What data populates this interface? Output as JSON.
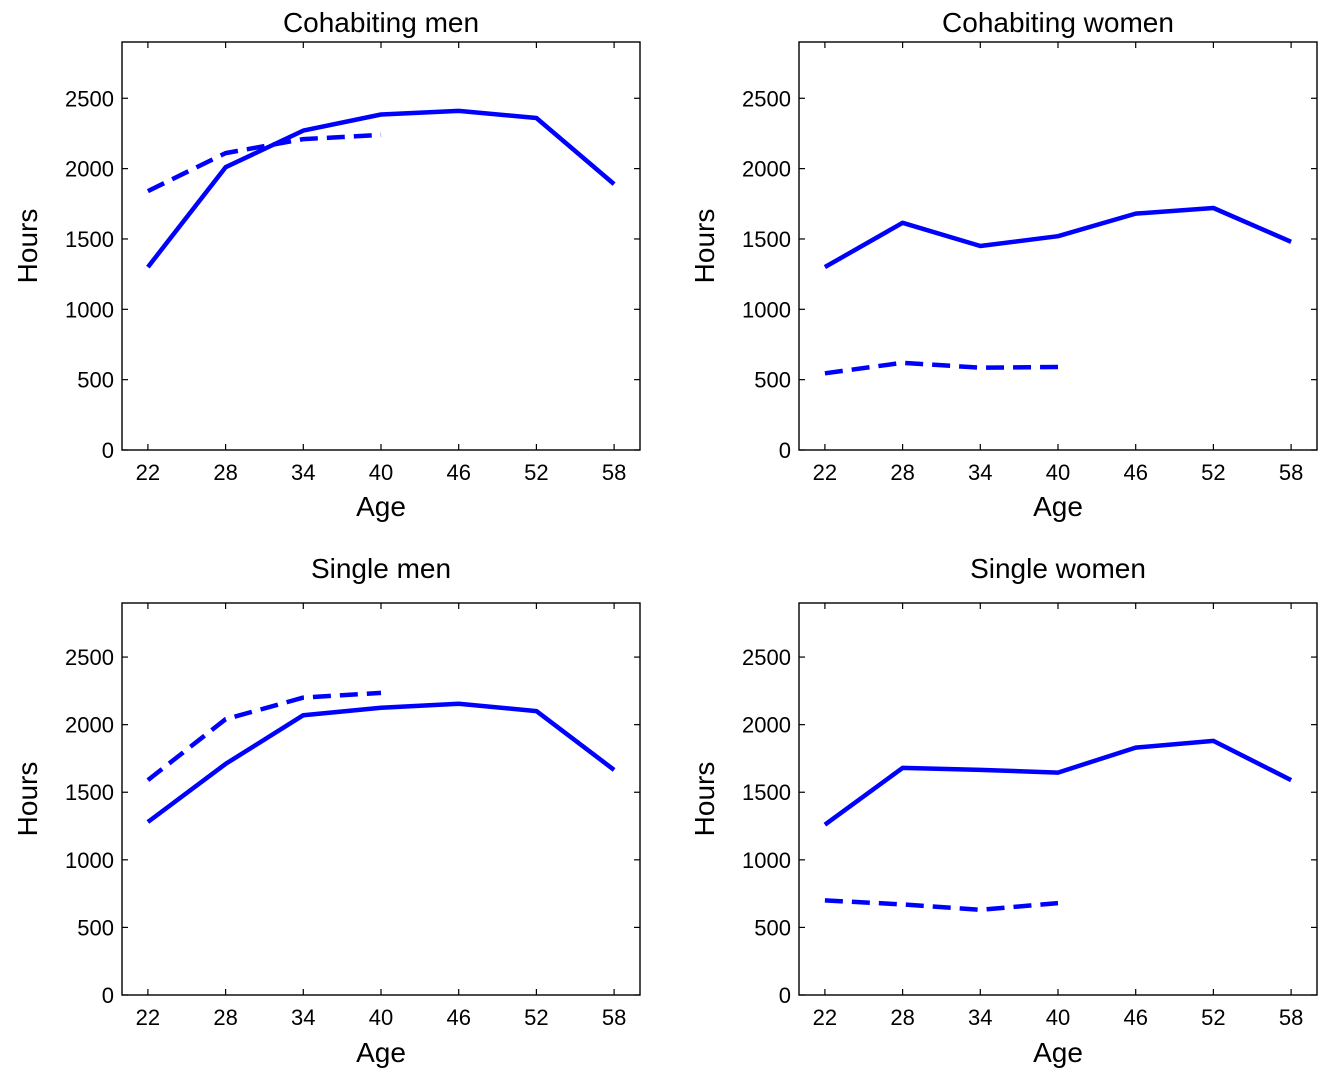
{
  "chart_data": [
    {
      "type": "line",
      "title": "Cohabiting men",
      "xlabel": "Age",
      "ylabel": "Hours",
      "x_ticks": [
        "22",
        "28",
        "34",
        "40",
        "46",
        "52",
        "58"
      ],
      "y_ticks": [
        "0",
        "500",
        "1000",
        "1500",
        "2000",
        "2500"
      ],
      "xlim": [
        20,
        60
      ],
      "ylim": [
        0,
        2900
      ],
      "grid": false,
      "series": [
        {
          "style": "solid",
          "color": "#0000ff",
          "x": [
            22,
            28,
            34,
            40,
            46,
            52,
            58
          ],
          "y": [
            1300,
            2010,
            2270,
            2385,
            2410,
            2360,
            1890
          ]
        },
        {
          "style": "dashed",
          "color": "#0000ff",
          "x": [
            22,
            28,
            34,
            40
          ],
          "y": [
            1840,
            2110,
            2210,
            2240
          ]
        }
      ]
    },
    {
      "type": "line",
      "title": "Cohabiting women",
      "xlabel": "Age",
      "ylabel": "Hours",
      "x_ticks": [
        "22",
        "28",
        "34",
        "40",
        "46",
        "52",
        "58"
      ],
      "y_ticks": [
        "0",
        "500",
        "1000",
        "1500",
        "2000",
        "2500"
      ],
      "xlim": [
        20,
        60
      ],
      "ylim": [
        0,
        2900
      ],
      "grid": false,
      "series": [
        {
          "style": "solid",
          "color": "#0000ff",
          "x": [
            22,
            28,
            34,
            40,
            46,
            52,
            58
          ],
          "y": [
            1300,
            1615,
            1450,
            1520,
            1680,
            1720,
            1480
          ]
        },
        {
          "style": "dashed",
          "color": "#0000ff",
          "x": [
            22,
            28,
            34,
            40
          ],
          "y": [
            545,
            620,
            585,
            590
          ]
        }
      ]
    },
    {
      "type": "line",
      "title": "Single men",
      "xlabel": "Age",
      "ylabel": "Hours",
      "x_ticks": [
        "22",
        "28",
        "34",
        "40",
        "46",
        "52",
        "58"
      ],
      "y_ticks": [
        "0",
        "500",
        "1000",
        "1500",
        "2000",
        "2500"
      ],
      "xlim": [
        20,
        60
      ],
      "ylim": [
        0,
        2900
      ],
      "grid": false,
      "series": [
        {
          "style": "solid",
          "color": "#0000ff",
          "x": [
            22,
            28,
            34,
            40,
            46,
            52,
            58
          ],
          "y": [
            1280,
            1710,
            2070,
            2125,
            2155,
            2100,
            1665
          ]
        },
        {
          "style": "dashed",
          "color": "#0000ff",
          "x": [
            22,
            28,
            34,
            40
          ],
          "y": [
            1590,
            2040,
            2200,
            2235
          ]
        }
      ]
    },
    {
      "type": "line",
      "title": "Single women",
      "xlabel": "Age",
      "ylabel": "Hours",
      "x_ticks": [
        "22",
        "28",
        "34",
        "40",
        "46",
        "52",
        "58"
      ],
      "y_ticks": [
        "0",
        "500",
        "1000",
        "1500",
        "2000",
        "2500"
      ],
      "xlim": [
        20,
        60
      ],
      "ylim": [
        0,
        2900
      ],
      "grid": false,
      "series": [
        {
          "style": "solid",
          "color": "#0000ff",
          "x": [
            22,
            28,
            34,
            40,
            46,
            52,
            58
          ],
          "y": [
            1260,
            1680,
            1665,
            1645,
            1830,
            1880,
            1590
          ]
        },
        {
          "style": "dashed",
          "color": "#0000ff",
          "x": [
            22,
            28,
            34,
            40
          ],
          "y": [
            700,
            670,
            630,
            680
          ]
        }
      ]
    }
  ]
}
